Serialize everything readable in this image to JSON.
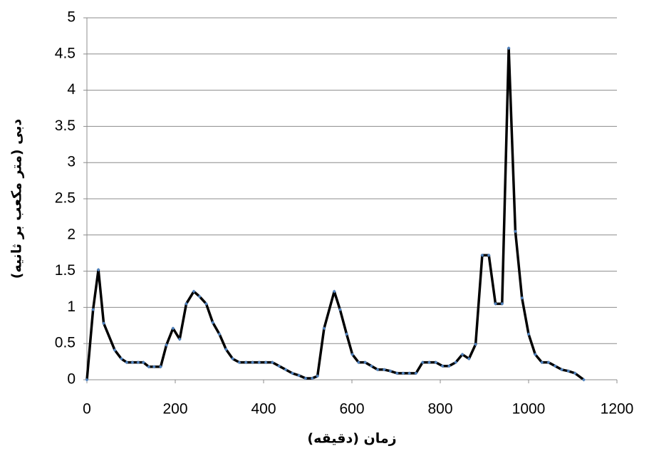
{
  "chart_data": {
    "type": "line",
    "x_label": "زمان (دقیقه)",
    "y_label": "دبی (متر مکعب بر ثانیه)",
    "x": [
      0,
      14,
      26,
      38,
      63,
      78,
      90,
      103,
      116,
      128,
      140,
      152,
      167,
      180,
      195,
      210,
      225,
      242,
      255,
      270,
      285,
      300,
      315,
      330,
      345,
      360,
      375,
      390,
      405,
      420,
      435,
      450,
      465,
      480,
      495,
      510,
      522,
      537,
      560,
      573,
      588,
      601,
      615,
      630,
      644,
      658,
      673,
      687,
      702,
      716,
      730,
      745,
      760,
      775,
      790,
      805,
      820,
      835,
      850,
      865,
      880,
      895,
      910,
      925,
      940,
      955,
      970,
      985,
      1000,
      1015,
      1030,
      1045,
      1060,
      1075,
      1090,
      1105,
      1125
    ],
    "values": [
      0,
      0.97,
      1.52,
      0.78,
      0.41,
      0.29,
      0.24,
      0.24,
      0.24,
      0.24,
      0.18,
      0.18,
      0.18,
      0.48,
      0.71,
      0.56,
      1.05,
      1.22,
      1.15,
      1.05,
      0.79,
      0.63,
      0.42,
      0.29,
      0.24,
      0.24,
      0.24,
      0.24,
      0.24,
      0.24,
      0.19,
      0.14,
      0.09,
      0.06,
      0.02,
      0.02,
      0.05,
      0.71,
      1.22,
      0.97,
      0.63,
      0.35,
      0.24,
      0.24,
      0.19,
      0.14,
      0.14,
      0.12,
      0.09,
      0.09,
      0.09,
      0.09,
      0.24,
      0.24,
      0.24,
      0.19,
      0.19,
      0.24,
      0.35,
      0.29,
      0.49,
      1.72,
      1.72,
      1.05,
      1.05,
      4.58,
      2.05,
      1.13,
      0.63,
      0.35,
      0.24,
      0.24,
      0.19,
      0.14,
      0.12,
      0.09,
      0
    ],
    "color": "#000000",
    "marker_color": "#4f81bd",
    "xlim": [
      0,
      1200
    ],
    "xticks": [
      0,
      200,
      400,
      600,
      800,
      1000,
      1200
    ],
    "ylim": [
      0,
      5
    ],
    "yticks": [
      0,
      0.5,
      1,
      1.5,
      2,
      2.5,
      3,
      3.5,
      4,
      4.5,
      5
    ],
    "grid": true
  }
}
